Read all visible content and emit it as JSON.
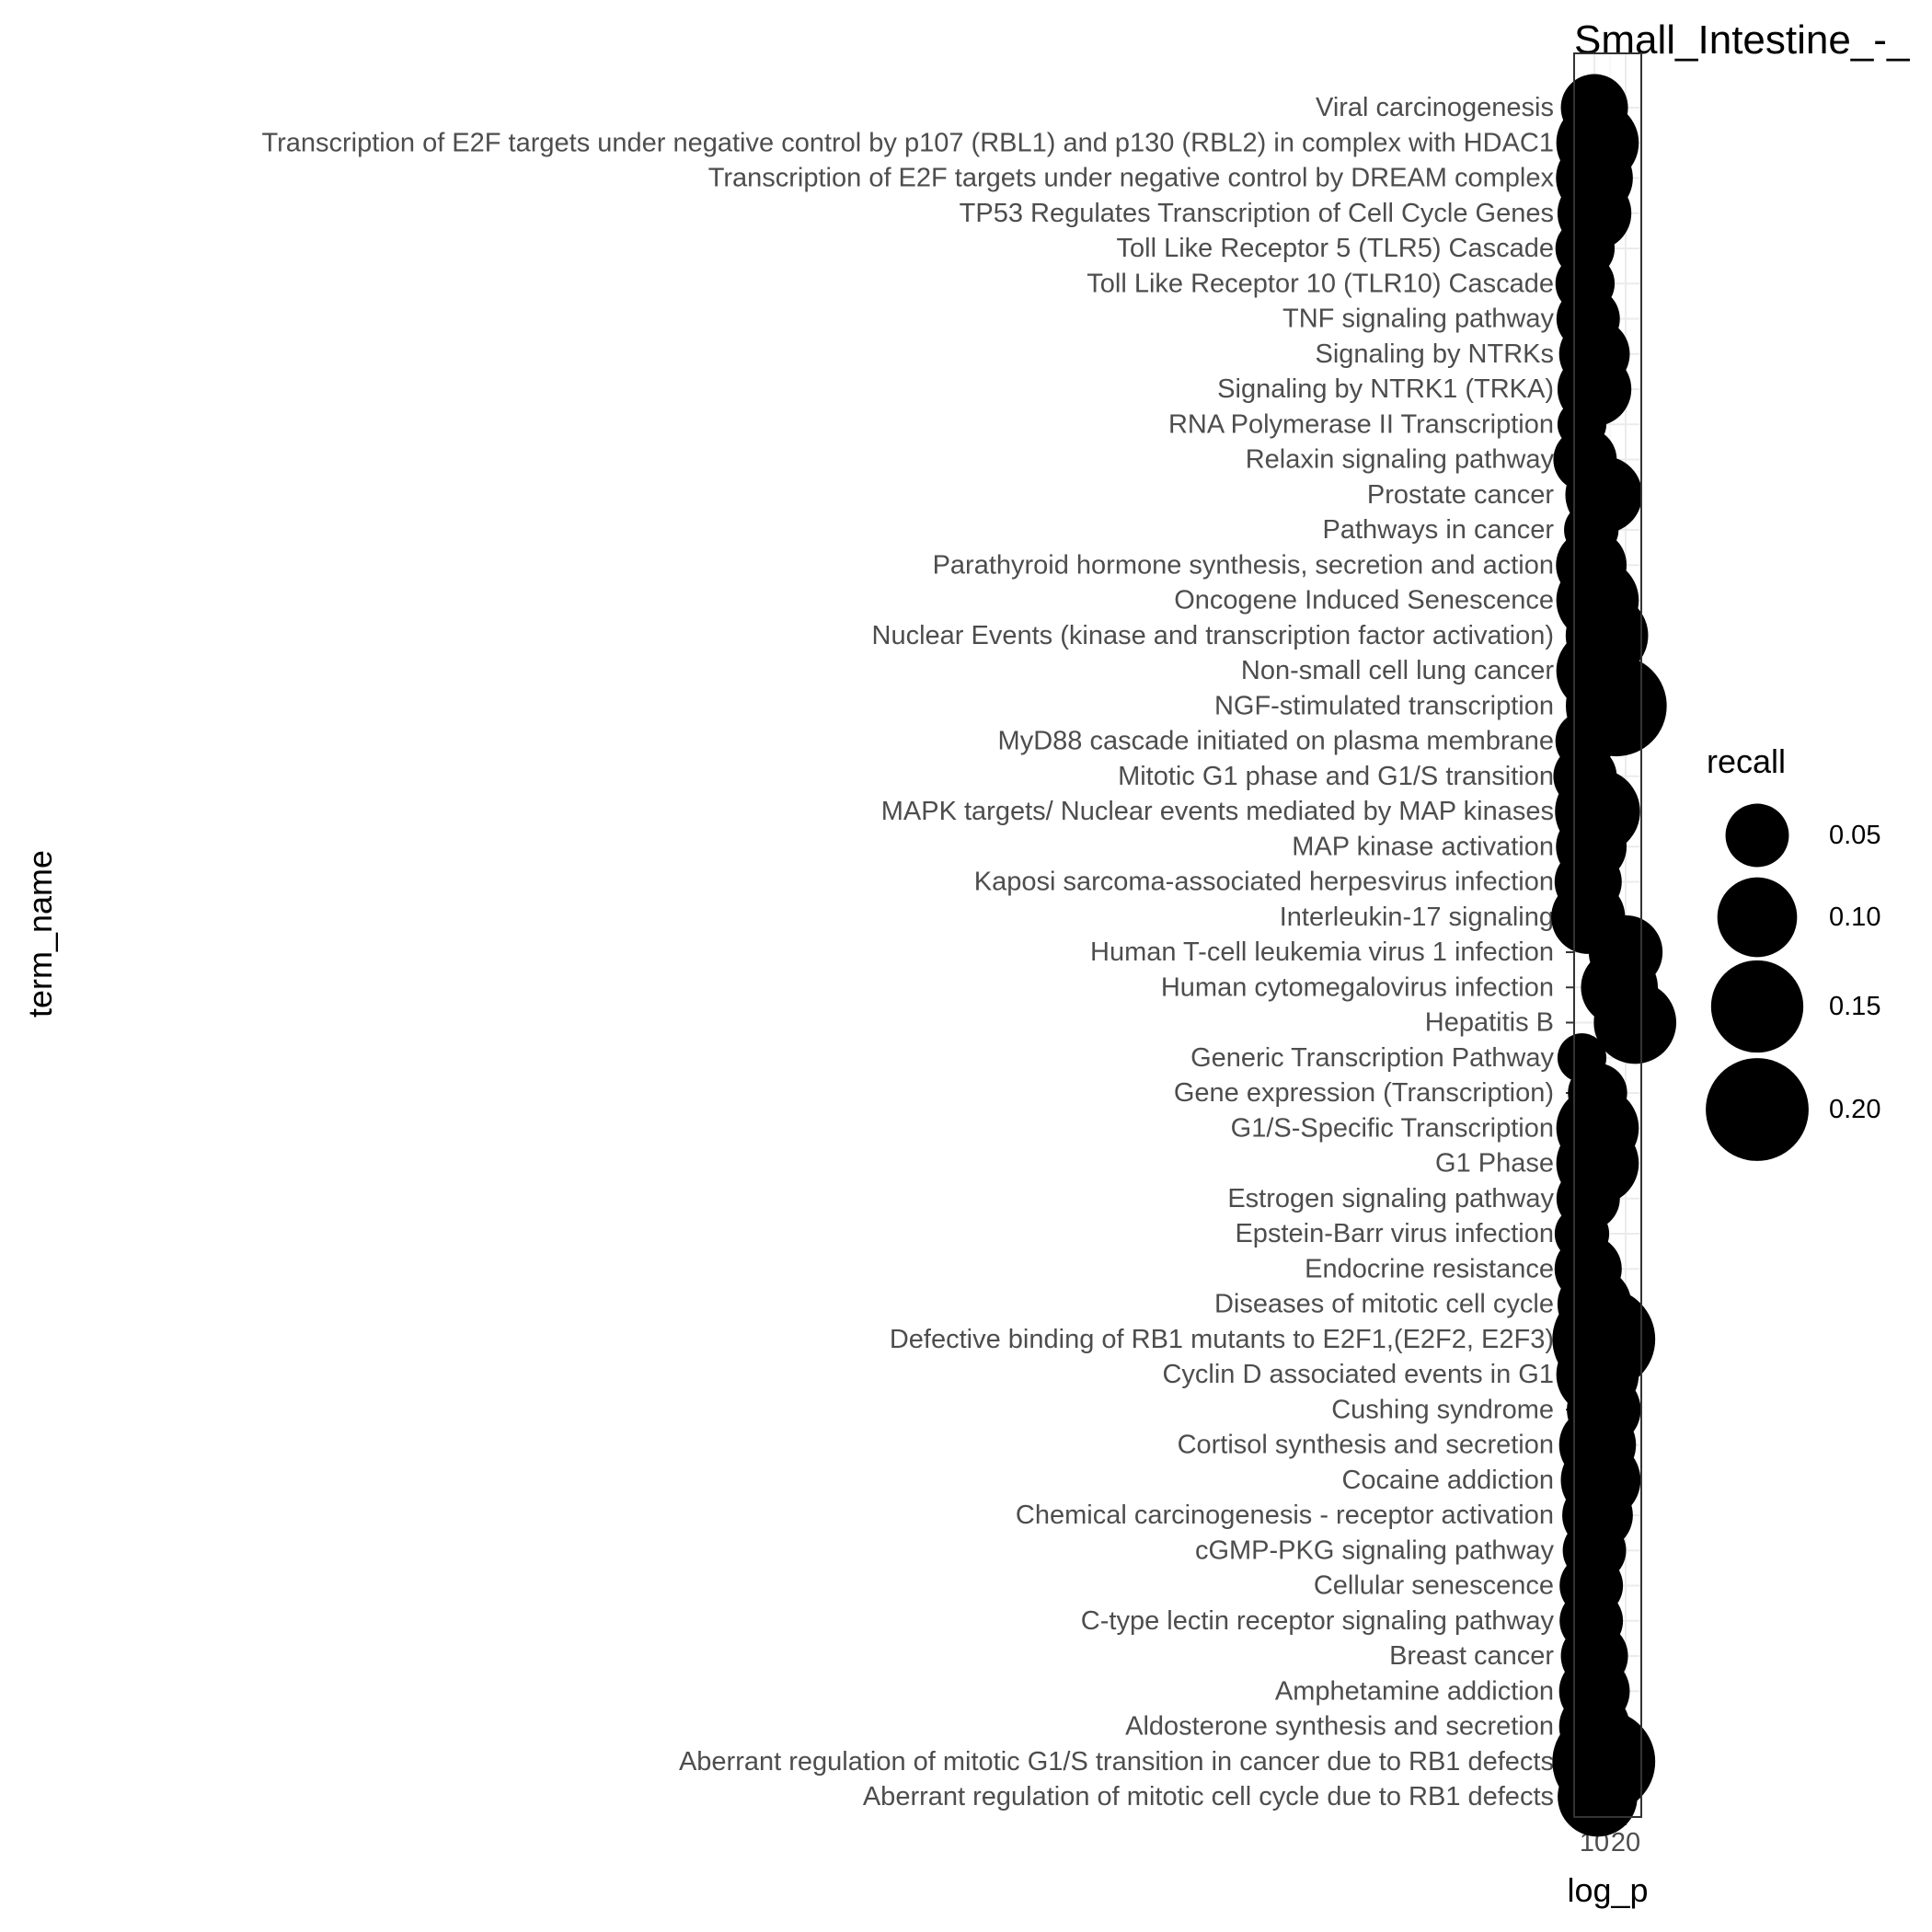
{
  "chart_data": {
    "type": "scatter",
    "title": "Small_Intestine_-_",
    "xlabel": "log_p",
    "ylabel": "term_name",
    "x_ticks": [
      10,
      20
    ],
    "xlim": [
      3.5,
      25.0
    ],
    "grid": true,
    "legend": {
      "title": "recall",
      "position": "right",
      "values": [
        0.05,
        0.1,
        0.15,
        0.2
      ],
      "labels": [
        "0.05",
        "0.10",
        "0.15",
        "0.20"
      ]
    },
    "point_color": "#000000",
    "points": [
      {
        "term": "Viral carcinogenesis",
        "x": 10,
        "recall": 0.06
      },
      {
        "term": "Transcription of E2F targets under negative control by p107 (RBL1) and p130 (RBL2) in complex with HDAC1",
        "x": 11,
        "recall": 0.11
      },
      {
        "term": "Transcription of E2F targets under negative control by DREAM complex",
        "x": 10,
        "recall": 0.09
      },
      {
        "term": "TP53 Regulates Transcription of Cell Cycle Genes",
        "x": 10,
        "recall": 0.08
      },
      {
        "term": "Toll Like Receptor 5 (TLR5) Cascade",
        "x": 7,
        "recall": 0.04
      },
      {
        "term": "Toll Like Receptor 10 (TLR10) Cascade",
        "x": 7,
        "recall": 0.04
      },
      {
        "term": "TNF signaling pathway",
        "x": 8,
        "recall": 0.05
      },
      {
        "term": "Signaling by NTRKs",
        "x": 10,
        "recall": 0.07
      },
      {
        "term": "Signaling by NTRK1 (TRKA)",
        "x": 10,
        "recall": 0.08
      },
      {
        "term": "RNA Polymerase II Transcription",
        "x": 6,
        "recall": 0.02
      },
      {
        "term": "Relaxin signaling pathway",
        "x": 7,
        "recall": 0.05
      },
      {
        "term": "Prostate cancer",
        "x": 13,
        "recall": 0.09
      },
      {
        "term": "Pathways in cancer",
        "x": 9,
        "recall": 0.03
      },
      {
        "term": "Parathyroid hormone synthesis, secretion and action",
        "x": 9,
        "recall": 0.07
      },
      {
        "term": "Oncogene Induced Senescence",
        "x": 11,
        "recall": 0.11
      },
      {
        "term": "Nuclear Events (kinase and transcription factor activation)",
        "x": 14,
        "recall": 0.11
      },
      {
        "term": "Non-small cell lung cancer",
        "x": 11,
        "recall": 0.11
      },
      {
        "term": "NGF-stimulated transcription",
        "x": 17,
        "recall": 0.19
      },
      {
        "term": "MyD88 cascade initiated on plasma membrane",
        "x": 7,
        "recall": 0.04
      },
      {
        "term": "Mitotic G1 phase and G1/S transition",
        "x": 7,
        "recall": 0.05
      },
      {
        "term": "MAPK targets/ Nuclear events mediated by MAP kinases",
        "x": 11,
        "recall": 0.12
      },
      {
        "term": "MAP kinase activation",
        "x": 9,
        "recall": 0.07
      },
      {
        "term": "Kaposi sarcoma-associated herpesvirus infection",
        "x": 8,
        "recall": 0.06
      },
      {
        "term": "Interleukin-17 signaling",
        "x": 8,
        "recall": 0.08
      },
      {
        "term": "Human T-cell leukemia virus 1 infection",
        "x": 20,
        "recall": 0.08
      },
      {
        "term": "Human cytomegalovirus infection",
        "x": 18,
        "recall": 0.09
      },
      {
        "term": "Hepatitis B",
        "x": 23,
        "recall": 0.11
      },
      {
        "term": "Generic Transcription Pathway",
        "x": 6,
        "recall": 0.02
      },
      {
        "term": "Gene expression (Transcription)",
        "x": 11,
        "recall": 0.04
      },
      {
        "term": "G1/S-Specific Transcription",
        "x": 11,
        "recall": 0.11
      },
      {
        "term": "G1 Phase",
        "x": 11,
        "recall": 0.11
      },
      {
        "term": "Estrogen signaling pathway",
        "x": 8,
        "recall": 0.05
      },
      {
        "term": "Epstein-Barr virus infection",
        "x": 6,
        "recall": 0.03
      },
      {
        "term": "Endocrine resistance",
        "x": 8,
        "recall": 0.06
      },
      {
        "term": "Diseases of mitotic cell cycle",
        "x": 10,
        "recall": 0.08
      },
      {
        "term": "Defective binding of RB1 mutants to E2F1,(E2F2, E2F3)",
        "x": 13,
        "recall": 0.2
      },
      {
        "term": "Cyclin D associated events in G1",
        "x": 11,
        "recall": 0.11
      },
      {
        "term": "Cushing syndrome",
        "x": 13,
        "recall": 0.08
      },
      {
        "term": "Cortisol synthesis and secretion",
        "x": 11,
        "recall": 0.09
      },
      {
        "term": "Cocaine addiction",
        "x": 12,
        "recall": 0.1
      },
      {
        "term": "Chemical carcinogenesis - receptor activation",
        "x": 11,
        "recall": 0.07
      },
      {
        "term": "cGMP-PKG signaling pathway",
        "x": 10,
        "recall": 0.05
      },
      {
        "term": "Cellular senescence",
        "x": 9,
        "recall": 0.05
      },
      {
        "term": "C-type lectin receptor signaling pathway",
        "x": 9,
        "recall": 0.05
      },
      {
        "term": "Breast cancer",
        "x": 10,
        "recall": 0.06
      },
      {
        "term": "Amphetamine addiction",
        "x": 10,
        "recall": 0.07
      },
      {
        "term": "Aldosterone synthesis and secretion",
        "x": 10,
        "recall": 0.07
      },
      {
        "term": "Aberrant regulation of mitotic G1/S transition in cancer due to RB1 defects",
        "x": 13,
        "recall": 0.2
      },
      {
        "term": "Aberrant regulation of mitotic cell cycle due to RB1 defects",
        "x": 11,
        "recall": 0.1
      }
    ]
  }
}
